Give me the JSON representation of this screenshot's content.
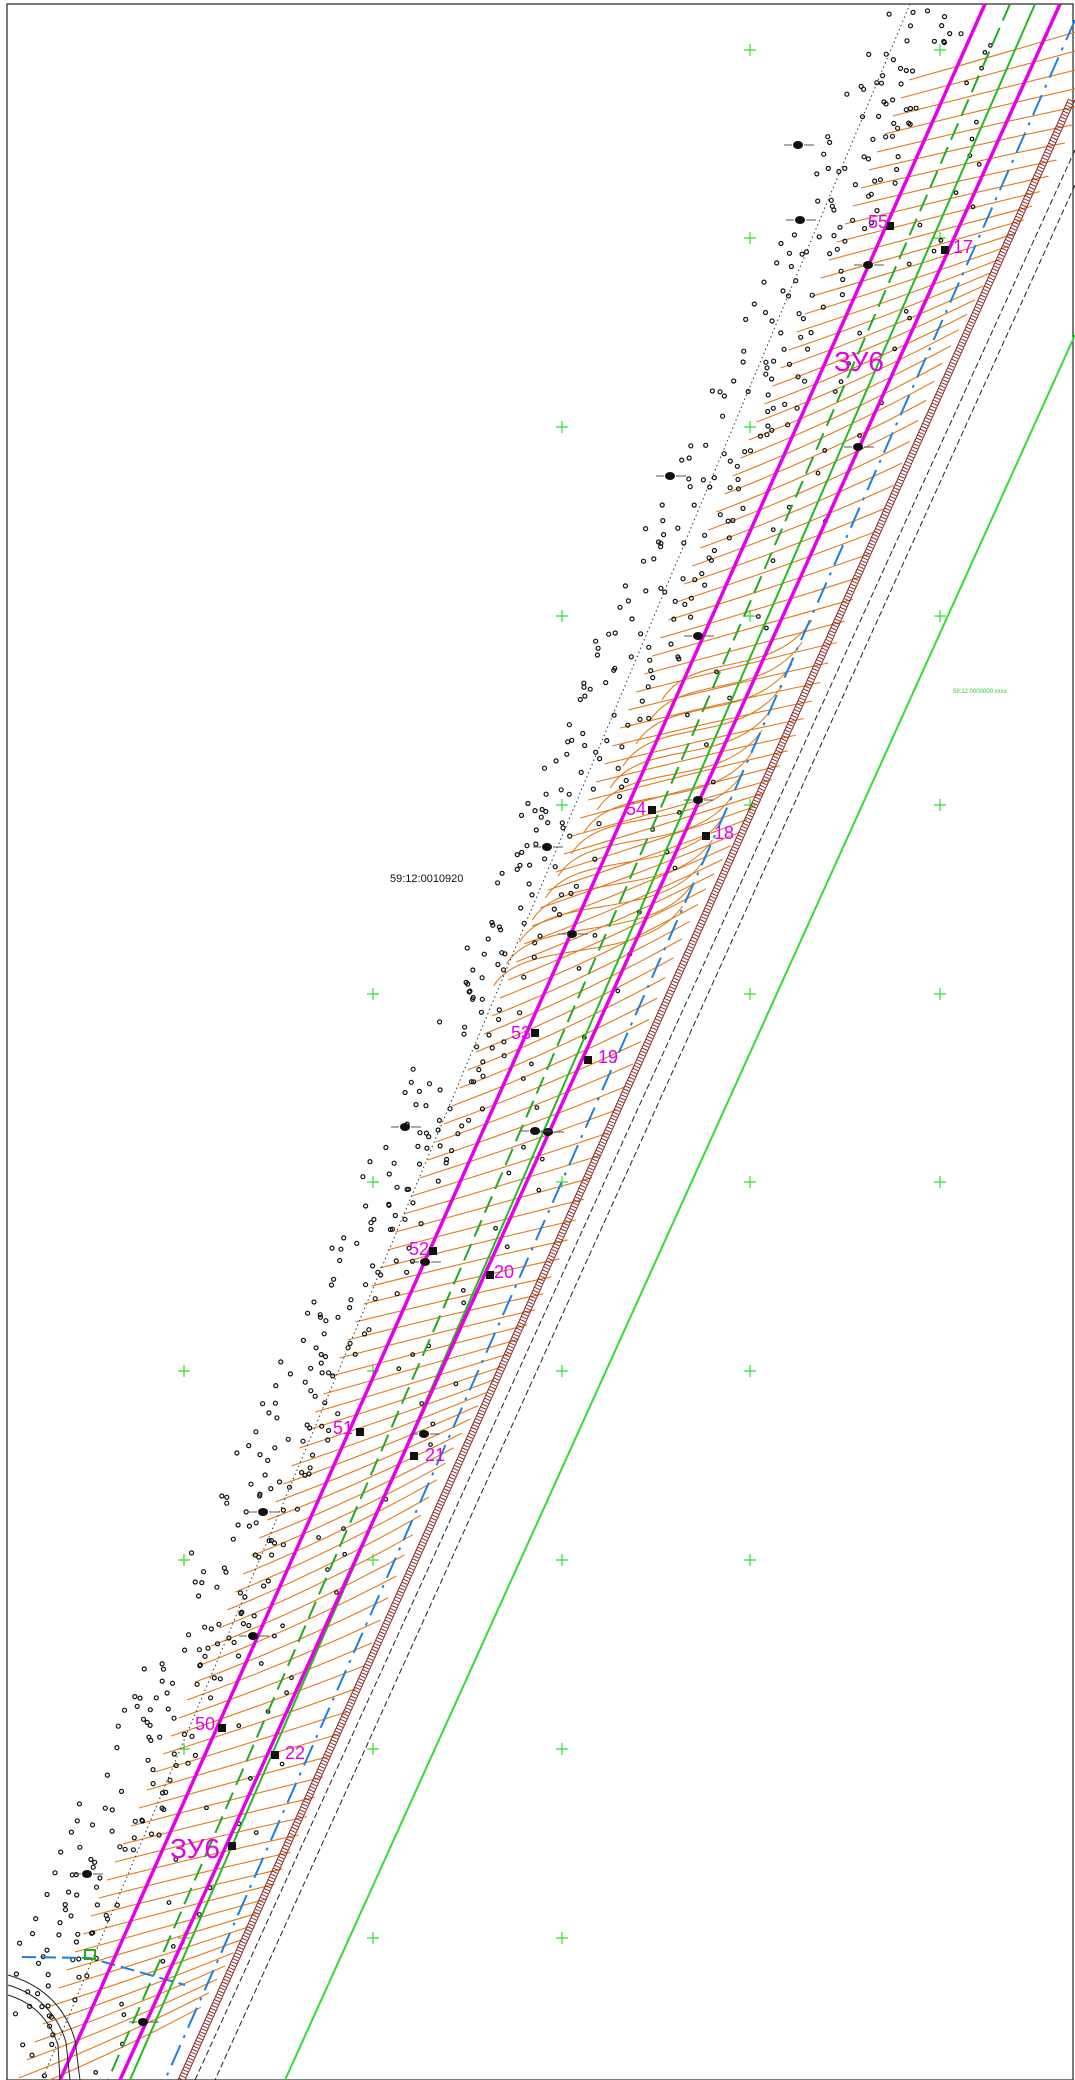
{
  "map": {
    "cadastral_number": "59:12:0010920",
    "green_parcel_label": "59:12:0000000:xxxx",
    "zone_labels": [
      "ЗУ6",
      "ЗУ6"
    ],
    "points_left_line": [
      "55",
      "54",
      "53",
      "52",
      "51",
      "50"
    ],
    "points_right_line": [
      "17",
      "18",
      "19",
      "20",
      "21",
      "22"
    ],
    "colors": {
      "boundary": "#e600e6",
      "green_lines": "#22bb22",
      "blue_line": "#1e7fe0",
      "contours": "#e07a1a",
      "slope_hatch": "#8b2a2a",
      "grid_cross": "#33dd33",
      "parcel_line": "#33dd33"
    },
    "icons": {
      "tree": "tree-symbol-icon",
      "grid": "grid-cross-icon",
      "point": "boundary-point-icon"
    }
  }
}
